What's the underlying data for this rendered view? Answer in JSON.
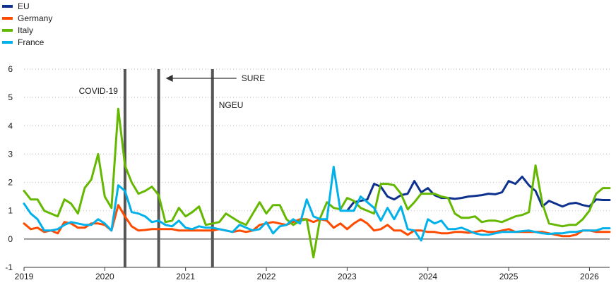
{
  "chart_data": {
    "type": "line",
    "title": "",
    "xlabel": "",
    "ylabel": "",
    "ylim": [
      -1,
      6
    ],
    "yticks": [
      6,
      5,
      4,
      3,
      2,
      1,
      0,
      -1
    ],
    "xlim": [
      2019,
      2026.25
    ],
    "xticks": [
      "2019",
      "2020",
      "2021",
      "2022",
      "2023",
      "2024",
      "2025",
      "2026"
    ],
    "grid": "horizontal-dotted",
    "legend": "top-left",
    "series": [
      {
        "name": "EU",
        "color": "#0d318c",
        "x": [
          2023.0,
          2023.083,
          2023.167,
          2023.25,
          2023.333,
          2023.417,
          2023.5,
          2023.583,
          2023.667,
          2023.75,
          2023.833,
          2023.917,
          2024.0,
          2024.083,
          2024.167,
          2024.25,
          2024.333,
          2024.417,
          2024.5,
          2024.583,
          2024.667,
          2024.75,
          2024.833,
          2024.917,
          2025.0,
          2025.083,
          2025.167,
          2025.25,
          2025.333,
          2025.417,
          2025.5,
          2025.583,
          2025.667,
          2025.75,
          2025.833,
          2025.917,
          2026.0,
          2026.083,
          2026.167,
          2026.25
        ],
        "y": [
          1.0,
          1.3,
          1.35,
          1.4,
          1.95,
          1.85,
          1.5,
          1.4,
          1.55,
          1.6,
          2.05,
          1.65,
          1.8,
          1.55,
          1.45,
          1.45,
          1.42,
          1.45,
          1.5,
          1.52,
          1.55,
          1.6,
          1.58,
          1.65,
          2.05,
          1.95,
          2.2,
          1.9,
          1.7,
          1.15,
          1.35,
          1.25,
          1.15,
          1.25,
          1.28,
          1.2,
          1.15,
          1.4,
          1.38,
          1.38
        ]
      },
      {
        "name": "Germany",
        "color": "#ff4b00",
        "x": [
          2019.0,
          2019.083,
          2019.167,
          2019.25,
          2019.333,
          2019.417,
          2019.5,
          2019.583,
          2019.667,
          2019.75,
          2019.833,
          2019.917,
          2020.0,
          2020.083,
          2020.167,
          2020.25,
          2020.333,
          2020.417,
          2020.5,
          2020.583,
          2020.667,
          2020.75,
          2020.833,
          2020.917,
          2021.0,
          2021.083,
          2021.167,
          2021.25,
          2021.333,
          2021.417,
          2021.5,
          2021.583,
          2021.667,
          2021.75,
          2021.833,
          2021.917,
          2022.0,
          2022.083,
          2022.167,
          2022.25,
          2022.333,
          2022.417,
          2022.5,
          2022.583,
          2022.667,
          2022.75,
          2022.833,
          2022.917,
          2023.0,
          2023.083,
          2023.167,
          2023.25,
          2023.333,
          2023.417,
          2023.5,
          2023.583,
          2023.667,
          2023.75,
          2023.833,
          2023.917,
          2024.0,
          2024.083,
          2024.167,
          2024.25,
          2024.333,
          2024.417,
          2024.5,
          2024.583,
          2024.667,
          2024.75,
          2024.833,
          2024.917,
          2025.0,
          2025.083,
          2025.167,
          2025.25,
          2025.333,
          2025.417,
          2025.5,
          2025.583,
          2025.667,
          2025.75,
          2025.833,
          2025.917,
          2026.0,
          2026.083,
          2026.167,
          2026.25
        ],
        "y": [
          0.55,
          0.35,
          0.4,
          0.25,
          0.3,
          0.2,
          0.6,
          0.55,
          0.4,
          0.4,
          0.55,
          0.55,
          0.5,
          0.3,
          1.2,
          0.8,
          0.45,
          0.3,
          0.32,
          0.35,
          0.35,
          0.35,
          0.35,
          0.3,
          0.3,
          0.3,
          0.3,
          0.3,
          0.3,
          0.35,
          0.3,
          0.25,
          0.3,
          0.25,
          0.3,
          0.5,
          0.55,
          0.6,
          0.55,
          0.5,
          0.6,
          0.7,
          0.7,
          0.6,
          0.7,
          0.65,
          0.4,
          0.55,
          0.35,
          0.55,
          0.7,
          0.55,
          0.3,
          0.35,
          0.5,
          0.3,
          0.3,
          0.15,
          0.3,
          0.3,
          0.25,
          0.25,
          0.2,
          0.2,
          0.25,
          0.25,
          0.22,
          0.25,
          0.3,
          0.25,
          0.25,
          0.3,
          0.35,
          0.25,
          0.25,
          0.25,
          0.25,
          0.25,
          0.2,
          0.15,
          0.1,
          0.1,
          0.15,
          0.3,
          0.3,
          0.25,
          0.25,
          0.25
        ]
      },
      {
        "name": "Italy",
        "color": "#65b800",
        "x": [
          2019.0,
          2019.083,
          2019.167,
          2019.25,
          2019.333,
          2019.417,
          2019.5,
          2019.583,
          2019.667,
          2019.75,
          2019.833,
          2019.917,
          2020.0,
          2020.083,
          2020.167,
          2020.25,
          2020.333,
          2020.417,
          2020.5,
          2020.583,
          2020.667,
          2020.75,
          2020.833,
          2020.917,
          2021.0,
          2021.083,
          2021.167,
          2021.25,
          2021.333,
          2021.417,
          2021.5,
          2021.583,
          2021.667,
          2021.75,
          2021.833,
          2021.917,
          2022.0,
          2022.083,
          2022.167,
          2022.25,
          2022.333,
          2022.417,
          2022.5,
          2022.583,
          2022.667,
          2022.75,
          2022.833,
          2022.917,
          2023.0,
          2023.083,
          2023.167,
          2023.25,
          2023.333,
          2023.417,
          2023.5,
          2023.583,
          2023.667,
          2023.75,
          2023.833,
          2023.917,
          2024.0,
          2024.083,
          2024.167,
          2024.25,
          2024.333,
          2024.417,
          2024.5,
          2024.583,
          2024.667,
          2024.75,
          2024.833,
          2024.917,
          2025.0,
          2025.083,
          2025.167,
          2025.25,
          2025.333,
          2025.417,
          2025.5,
          2025.583,
          2025.667,
          2025.75,
          2025.833,
          2025.917,
          2026.0,
          2026.083,
          2026.167,
          2026.25
        ],
        "y": [
          1.7,
          1.4,
          1.4,
          1.0,
          0.9,
          0.8,
          1.4,
          1.25,
          0.9,
          1.8,
          2.1,
          3.0,
          1.5,
          1.1,
          4.6,
          2.6,
          2.0,
          1.6,
          1.7,
          1.85,
          1.55,
          0.6,
          0.65,
          1.1,
          0.8,
          0.95,
          1.15,
          0.5,
          0.55,
          0.6,
          0.9,
          0.75,
          0.6,
          0.5,
          0.9,
          1.3,
          0.9,
          1.2,
          1.2,
          0.7,
          0.5,
          0.65,
          0.7,
          -0.65,
          0.75,
          1.3,
          1.1,
          1.05,
          1.45,
          1.35,
          1.1,
          1.0,
          0.9,
          1.95,
          1.95,
          1.9,
          1.6,
          1.05,
          1.3,
          1.6,
          1.6,
          1.6,
          1.5,
          1.45,
          0.9,
          0.75,
          0.75,
          0.8,
          0.6,
          0.65,
          0.65,
          0.6,
          0.7,
          0.8,
          0.85,
          0.95,
          2.6,
          1.25,
          0.55,
          0.5,
          0.45,
          0.5,
          0.5,
          0.7,
          1.0,
          1.6,
          1.8,
          1.8
        ]
      },
      {
        "name": "France",
        "color": "#00b1ea",
        "x": [
          2019.0,
          2019.083,
          2019.167,
          2019.25,
          2019.333,
          2019.417,
          2019.5,
          2019.583,
          2019.667,
          2019.75,
          2019.833,
          2019.917,
          2020.0,
          2020.083,
          2020.167,
          2020.25,
          2020.333,
          2020.417,
          2020.5,
          2020.583,
          2020.667,
          2020.75,
          2020.833,
          2020.917,
          2021.0,
          2021.083,
          2021.167,
          2021.25,
          2021.333,
          2021.417,
          2021.5,
          2021.583,
          2021.667,
          2021.75,
          2021.833,
          2021.917,
          2022.0,
          2022.083,
          2022.167,
          2022.25,
          2022.333,
          2022.417,
          2022.5,
          2022.583,
          2022.667,
          2022.75,
          2022.833,
          2022.917,
          2023.0,
          2023.083,
          2023.167,
          2023.25,
          2023.333,
          2023.417,
          2023.5,
          2023.583,
          2023.667,
          2023.75,
          2023.833,
          2023.917,
          2024.0,
          2024.083,
          2024.167,
          2024.25,
          2024.333,
          2024.417,
          2024.5,
          2024.583,
          2024.667,
          2024.75,
          2024.833,
          2024.917,
          2025.0,
          2025.083,
          2025.167,
          2025.25,
          2025.333,
          2025.417,
          2025.5,
          2025.583,
          2025.667,
          2025.75,
          2025.833,
          2025.917,
          2026.0,
          2026.083,
          2026.167,
          2026.25
        ],
        "y": [
          1.25,
          0.9,
          0.7,
          0.3,
          0.3,
          0.35,
          0.5,
          0.6,
          0.55,
          0.5,
          0.5,
          0.7,
          0.55,
          0.3,
          1.9,
          1.7,
          0.95,
          0.9,
          0.8,
          0.6,
          0.65,
          0.5,
          0.45,
          0.65,
          0.4,
          0.35,
          0.45,
          0.4,
          0.4,
          0.35,
          0.3,
          0.25,
          0.5,
          0.4,
          0.3,
          0.35,
          0.6,
          0.2,
          0.45,
          0.5,
          0.7,
          0.55,
          1.4,
          0.8,
          0.7,
          0.7,
          2.55,
          1.0,
          1.0,
          1.0,
          1.5,
          1.3,
          1.1,
          0.65,
          1.1,
          0.7,
          1.15,
          0.35,
          0.3,
          -0.05,
          0.7,
          0.55,
          0.65,
          0.35,
          0.35,
          0.4,
          0.3,
          0.2,
          0.15,
          0.15,
          0.2,
          0.25,
          0.25,
          0.25,
          0.28,
          0.3,
          0.25,
          0.2,
          0.18,
          0.2,
          0.2,
          0.25,
          0.25,
          0.3,
          0.3,
          0.3,
          0.38,
          0.38
        ]
      }
    ],
    "event_lines": [
      {
        "x": 2020.25,
        "label": "COVID-19"
      },
      {
        "x": 2020.667,
        "label": "SURE"
      },
      {
        "x": 2021.333,
        "label": "NGEU"
      }
    ]
  }
}
